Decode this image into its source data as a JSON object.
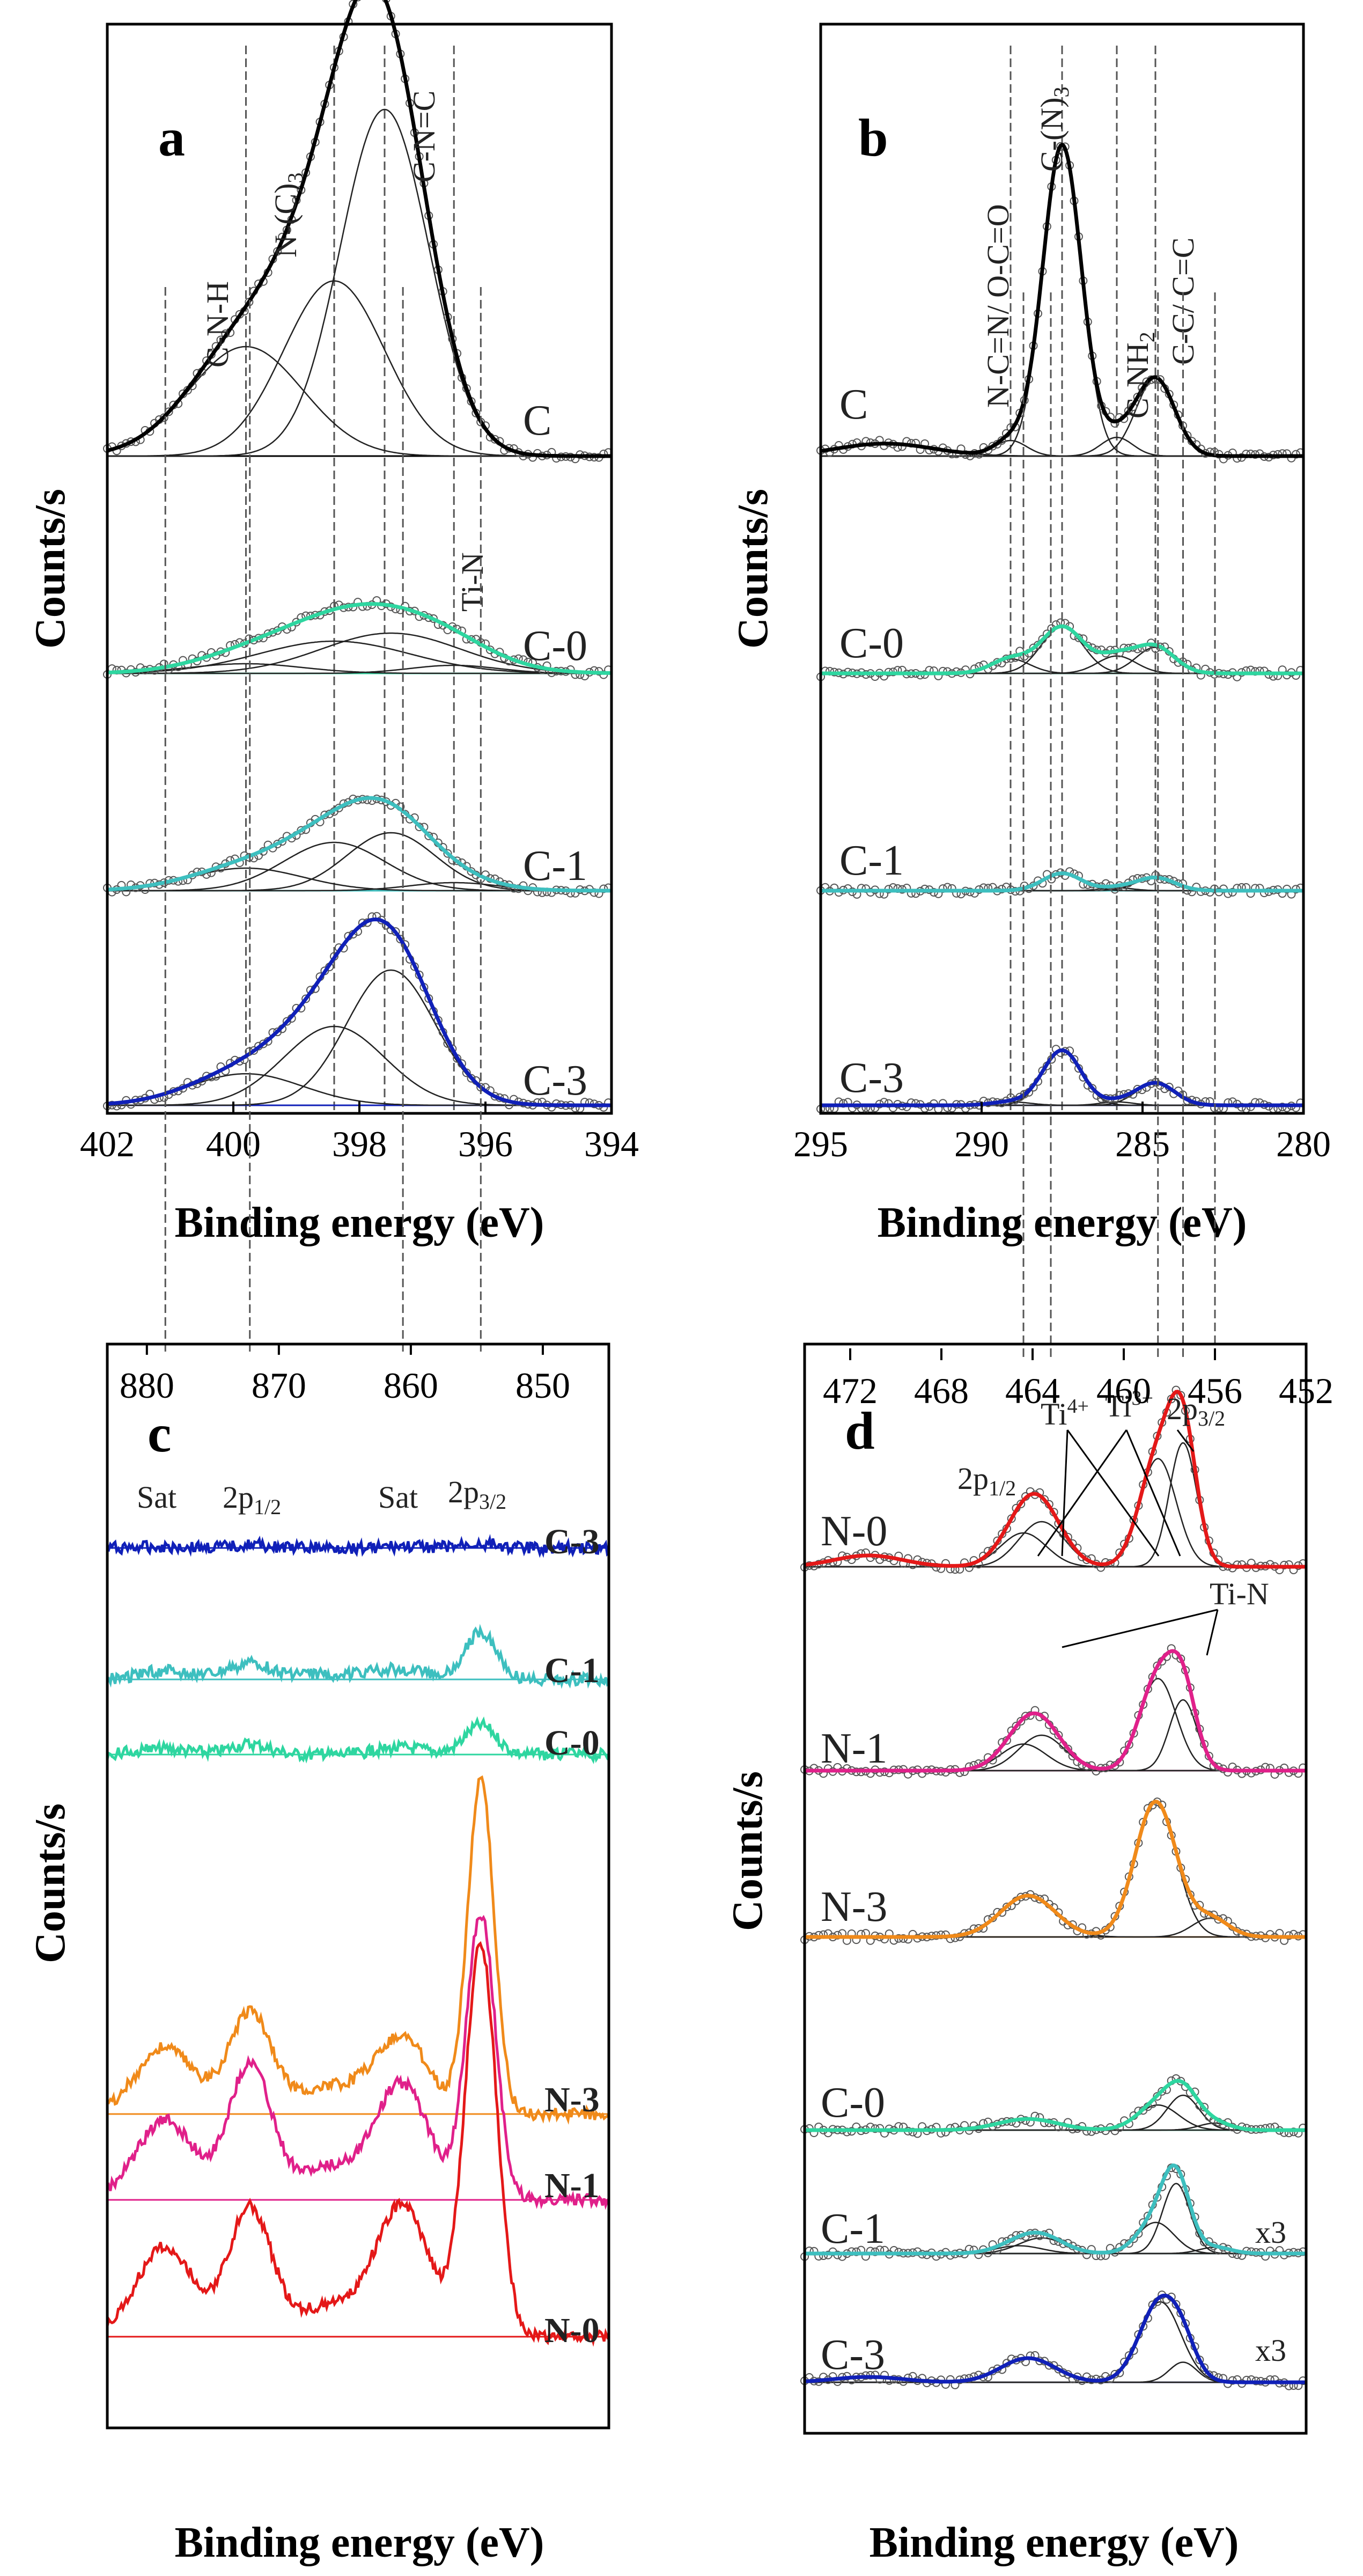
{
  "colors": {
    "C": "#000000",
    "C-0": "#2ed6a0",
    "C-1": "#3dbfbf",
    "C-3": "#1020b8",
    "N-0": "#e41818",
    "N-1": "#e0208a",
    "N-3": "#f08a1a",
    "envelope": "#000000"
  },
  "chart_data": [
    {
      "panel": "a",
      "type": "line",
      "title": "",
      "xlabel": "Binding energy (eV)",
      "ylabel": "Counts/s",
      "xlim": [
        402,
        394
      ],
      "xticks": [
        "402",
        "400",
        "398",
        "396",
        "394"
      ],
      "peak_labels": [
        "C-N-H",
        "N-(C)3",
        "C-N=C",
        "Ti-N"
      ],
      "reference_lines": [
        399.8,
        398.4,
        397.6,
        396.5
      ],
      "series": [
        {
          "name": "C",
          "color_key": "C",
          "components": [
            [
              399.8,
              0.3,
              0.9
            ],
            [
              398.4,
              0.48,
              0.8
            ],
            [
              397.6,
              0.95,
              0.7
            ]
          ]
        },
        {
          "name": "C-0",
          "color_key": "C-0",
          "components": [
            [
              399.8,
              0.06,
              0.9
            ],
            [
              398.4,
              0.2,
              1.2
            ],
            [
              397.5,
              0.25,
              1.1
            ],
            [
              396.5,
              0.05,
              0.7
            ]
          ]
        },
        {
          "name": "C-1",
          "color_key": "C-1",
          "components": [
            [
              399.8,
              0.14,
              0.9
            ],
            [
              398.4,
              0.3,
              0.8
            ],
            [
              397.5,
              0.36,
              0.7
            ],
            [
              396.5,
              0.05,
              0.7
            ]
          ]
        },
        {
          "name": "C-3",
          "color_key": "C-3",
          "components": [
            [
              399.8,
              0.14,
              0.9
            ],
            [
              398.4,
              0.35,
              0.8
            ],
            [
              397.5,
              0.6,
              0.7
            ]
          ]
        }
      ]
    },
    {
      "panel": "b",
      "type": "line",
      "title": "",
      "xlabel": "Binding energy (eV)",
      "ylabel": "Counts/s",
      "xlim": [
        295,
        280
      ],
      "xticks": [
        "295",
        "290",
        "285",
        "280"
      ],
      "peak_labels": [
        "N-C=N/ O-C=O",
        "C-(N)3",
        "C-NH2",
        "C-C/ C=C"
      ],
      "reference_lines": [
        289.1,
        287.5,
        285.8,
        284.6
      ],
      "series": [
        {
          "name": "C",
          "color_key": "C",
          "components": [
            [
              289.1,
              0.05,
              0.5
            ],
            [
              287.5,
              1.0,
              0.6
            ],
            [
              285.8,
              0.06,
              0.5
            ],
            [
              284.6,
              0.25,
              0.6
            ],
            [
              293.0,
              0.04,
              1.5
            ]
          ]
        },
        {
          "name": "C-0",
          "color_key": "C-0",
          "components": [
            [
              289.1,
              0.1,
              0.6
            ],
            [
              287.5,
              0.32,
              0.65
            ],
            [
              285.8,
              0.12,
              0.6
            ],
            [
              284.6,
              0.18,
              0.6
            ]
          ]
        },
        {
          "name": "C-1",
          "color_key": "C-1",
          "components": [
            [
              287.5,
              0.12,
              0.6
            ],
            [
              285.8,
              0.02,
              0.5
            ],
            [
              284.6,
              0.09,
              0.6
            ]
          ]
        },
        {
          "name": "C-3",
          "color_key": "C-3",
          "components": [
            [
              287.5,
              0.32,
              0.6
            ],
            [
              285.8,
              0.02,
              0.5
            ],
            [
              284.6,
              0.13,
              0.6
            ],
            [
              289.1,
              0.02,
              0.6
            ]
          ]
        }
      ]
    },
    {
      "panel": "c",
      "type": "line",
      "title": "",
      "xlabel": "Binding energy (eV)",
      "ylabel": "Counts/s",
      "xlim": [
        883,
        845
      ],
      "xticks": [
        "880",
        "870",
        "860",
        "850"
      ],
      "peak_labels": [
        "Sat",
        "2p1/2",
        "Sat",
        "2p3/2"
      ],
      "reference_lines": [
        878.6,
        872.2,
        860.6,
        854.7
      ],
      "series": [
        {
          "name": "C-3",
          "color_key": "C-3",
          "components": [
            [
              872.2,
              0.05,
              1.2
            ],
            [
              854.7,
              0.07,
              1.3
            ],
            [
              878.6,
              0.02,
              2.0
            ],
            [
              860.6,
              0.02,
              2.0
            ]
          ]
        },
        {
          "name": "C-1",
          "color_key": "C-1",
          "components": [
            [
              872.2,
              0.12,
              1.6
            ],
            [
              854.7,
              0.38,
              1.2
            ],
            [
              878.6,
              0.07,
              2.0
            ],
            [
              860.6,
              0.07,
              2.0
            ],
            [
              866,
              0.04,
              3.5
            ]
          ]
        },
        {
          "name": "C-0",
          "color_key": "C-0",
          "components": [
            [
              872.2,
              0.09,
              1.5
            ],
            [
              854.7,
              0.25,
              1.2
            ],
            [
              878.6,
              0.05,
              2.0
            ],
            [
              860.6,
              0.06,
              2.0
            ]
          ]
        },
        {
          "name": "N-3",
          "color_key": "N-3",
          "components": [
            [
              872.2,
              0.3,
              1.6
            ],
            [
              854.7,
              1.0,
              1.0
            ],
            [
              878.6,
              0.2,
              2.2
            ],
            [
              860.6,
              0.22,
              2.0
            ],
            [
              866,
              0.08,
              3.0
            ]
          ]
        },
        {
          "name": "N-1",
          "color_key": "N-1",
          "components": [
            [
              872.2,
              0.42,
              1.6
            ],
            [
              854.7,
              0.9,
              1.1
            ],
            [
              878.6,
              0.25,
              2.2
            ],
            [
              860.6,
              0.35,
              2.0
            ],
            [
              866,
              0.1,
              3.0
            ]
          ]
        },
        {
          "name": "N-0",
          "color_key": "N-0",
          "components": [
            [
              872.2,
              0.42,
              1.6
            ],
            [
              854.7,
              1.3,
              1.2
            ],
            [
              878.6,
              0.3,
              2.2
            ],
            [
              860.6,
              0.42,
              2.0
            ],
            [
              866,
              0.1,
              3.0
            ]
          ]
        }
      ]
    },
    {
      "panel": "d",
      "type": "line",
      "title": "",
      "xlabel": "Binding energy (eV)",
      "ylabel": "Counts/s",
      "xlim": [
        474,
        452
      ],
      "xticks": [
        "472",
        "468",
        "464",
        "460",
        "456",
        "452"
      ],
      "peak_labels": [
        "Ti4+",
        "Ti3+",
        "2p3/2",
        "2p1/2",
        "Ti-N"
      ],
      "reference_lines": [
        464.4,
        463.2,
        458.5,
        457.4,
        456.0
      ],
      "series": [
        {
          "name": "N-0",
          "color_key": "N-0",
          "multiplier": "",
          "components": [
            [
              463.6,
              0.2,
              1.0
            ],
            [
              464.4,
              0.15,
              1.0
            ],
            [
              458.5,
              0.48,
              0.8
            ],
            [
              457.4,
              0.55,
              0.6
            ],
            [
              471.2,
              0.05,
              1.5
            ]
          ]
        },
        {
          "name": "N-1",
          "color_key": "N-1",
          "multiplier": "",
          "components": [
            [
              463.6,
              0.2,
              1.0
            ],
            [
              464.4,
              0.15,
              1.0
            ],
            [
              458.5,
              0.52,
              0.8
            ],
            [
              457.4,
              0.4,
              0.6
            ]
          ]
        },
        {
          "name": "N-3",
          "color_key": "N-3",
          "multiplier": "",
          "components": [
            [
              464.2,
              0.22,
              1.2
            ],
            [
              458.6,
              0.72,
              0.9
            ],
            [
              456.2,
              0.1,
              0.8
            ]
          ]
        },
        {
          "name": "C-0",
          "color_key": "C-0",
          "multiplier": "",
          "components": [
            [
              464.2,
              0.08,
              1.3
            ],
            [
              458.5,
              0.18,
              0.9
            ],
            [
              457.4,
              0.25,
              0.7
            ],
            [
              456.0,
              0.05,
              0.7
            ]
          ]
        },
        {
          "name": "C-1",
          "color_key": "C-1",
          "multiplier": "x3",
          "components": [
            [
              463.6,
              0.1,
              1.0
            ],
            [
              464.6,
              0.05,
              1.0
            ],
            [
              458.6,
              0.2,
              0.8
            ],
            [
              457.7,
              0.45,
              0.6
            ],
            [
              456.0,
              0.04,
              0.7
            ]
          ]
        },
        {
          "name": "C-3",
          "color_key": "C-3",
          "multiplier": "x3",
          "components": [
            [
              464.2,
              0.18,
              1.2
            ],
            [
              458.4,
              0.6,
              0.9
            ],
            [
              457.4,
              0.15,
              0.6
            ],
            [
              471.2,
              0.04,
              1.5
            ]
          ]
        }
      ]
    }
  ],
  "panel_a": {
    "letter": "a",
    "xlabel": "Binding energy (eV)",
    "ylabel": "Counts/s",
    "ticks": [
      "402",
      "400",
      "398",
      "396",
      "394"
    ],
    "peak_cnh": "C-N-H",
    "peak_nc3": "N-(C)",
    "peak_nc3_sub": "3",
    "peak_cnc": "C-N=C",
    "peak_tin": "Ti-N",
    "labels": [
      "C",
      "C-0",
      "C-1",
      "C-3"
    ]
  },
  "panel_b": {
    "letter": "b",
    "xlabel": "Binding energy (eV)",
    "ylabel": "Counts/s",
    "ticks": [
      "295",
      "290",
      "285",
      "280"
    ],
    "peak_ncn": "N-C=N/ O-C=O",
    "peak_cn3": "C-(N)",
    "peak_cn3_sub": "3",
    "peak_cnh2": "C-NH",
    "peak_cnh2_sub": "2",
    "peak_cc": "C-C/ C=C",
    "labels": [
      "C",
      "C-0",
      "C-1",
      "C-3"
    ]
  },
  "panel_c": {
    "letter": "c",
    "xlabel": "Binding energy (eV)",
    "ylabel": "Counts/s",
    "ticks": [
      "880",
      "870",
      "860",
      "850"
    ],
    "sat1": "Sat",
    "p12": "2p",
    "p12_sub": "1/2",
    "sat2": "Sat",
    "p32": "2p",
    "p32_sub": "3/2",
    "labels": [
      "C-3",
      "C-1",
      "C-0",
      "N-3",
      "N-1",
      "N-0"
    ]
  },
  "panel_d": {
    "letter": "d",
    "xlabel": "Binding energy (eV)",
    "ylabel": "Counts/s",
    "ticks": [
      "472",
      "468",
      "464",
      "460",
      "456",
      "452"
    ],
    "ti4": "Ti",
    "ti4_sup": "4+",
    "ti3": "Ti",
    "ti3_sup": "3+",
    "p32": "2p",
    "p32_sub": "3/2",
    "p12": "2p",
    "p12_sub": "1/2",
    "tin": "Ti-N",
    "labels": [
      "N-0",
      "N-1",
      "N-3",
      "C-0",
      "C-1",
      "C-3"
    ],
    "mult_c1": "x3",
    "mult_c3": "x3"
  }
}
